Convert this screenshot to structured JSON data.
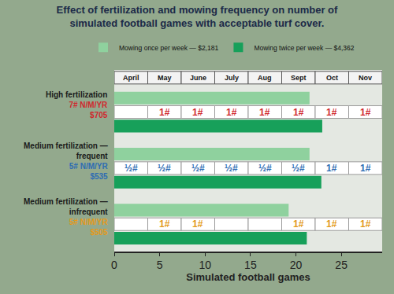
{
  "chart_data": {
    "type": "bar",
    "orientation": "horizontal",
    "title": "Effect of fertilization and mowing frequency on number of simulated football games with acceptable turf cover.",
    "x_label": "Simulated football games",
    "xlim": [
      0,
      29.5
    ],
    "xticks": [
      0,
      5,
      10,
      15,
      20,
      25
    ],
    "grid": false,
    "legend": "top",
    "tick_labels": "x",
    "categories": [
      "High fertilization",
      "Medium fertilization — frequent",
      "Medium fertilization — infrequent"
    ],
    "rates": [
      "7# N/M/YR",
      "5# N/M/YR",
      "5# N/M/YR"
    ],
    "costs": [
      "$705",
      "$535",
      "$505"
    ],
    "months": [
      "April",
      "May",
      "June",
      "July",
      "Aug",
      "Sept",
      "Oct",
      "Nov"
    ],
    "applications": [
      [
        null,
        "1#",
        "1#",
        "1#",
        "1#",
        "1#",
        "1#",
        "1#"
      ],
      [
        "½#",
        "½#",
        "½#",
        "½#",
        "½#",
        "½#",
        "1#",
        "1#"
      ],
      [
        null,
        "1#",
        "1#",
        null,
        null,
        "1#",
        "1#",
        "1#"
      ]
    ],
    "series": [
      {
        "name": "Mowing once per week — $2,181",
        "color": "#8fd19e",
        "values": [
          21.5,
          21.5,
          19.2
        ]
      },
      {
        "name": "Mowing twice per week — $4,362",
        "color": "#17a05a",
        "values": [
          22.9,
          22.8,
          21.2
        ]
      }
    ]
  }
}
